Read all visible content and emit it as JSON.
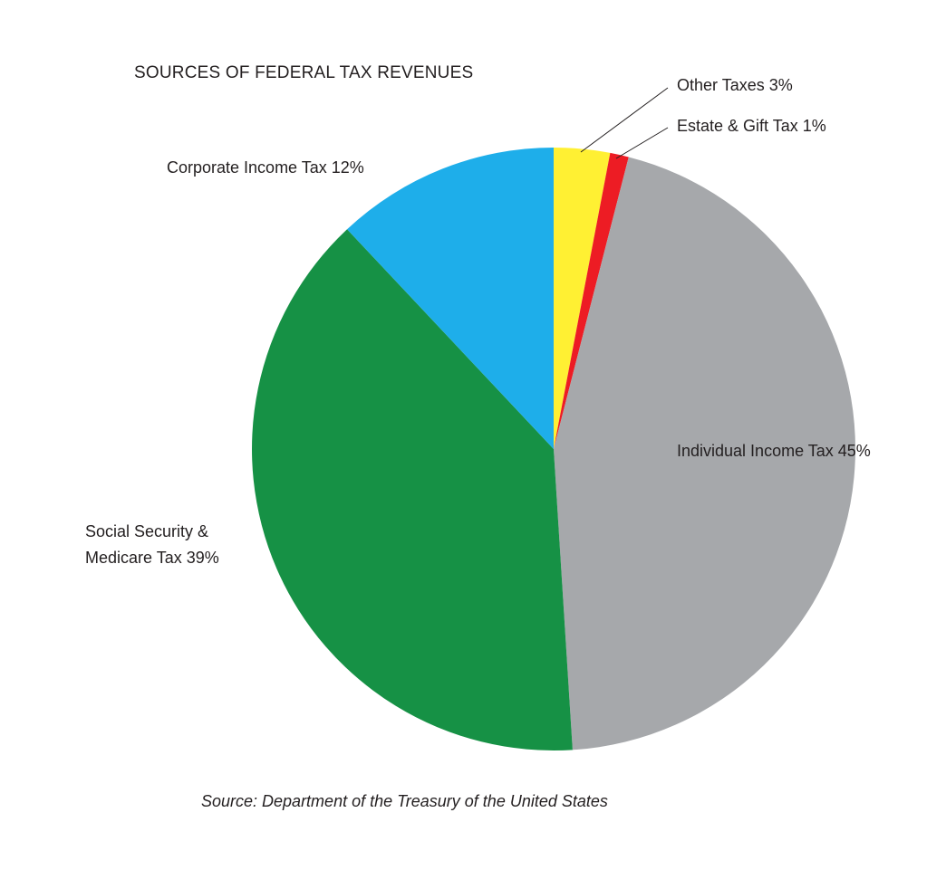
{
  "chart_data": {
    "type": "pie",
    "title": "SOURCES OF FEDERAL TAX REVENUES",
    "source": "Source: Department of the Treasury of the United States",
    "unit": "%",
    "start_angle_deg": 0,
    "direction": "clockwise",
    "slices": [
      {
        "label": "Other Taxes 3%",
        "value": 3,
        "color": "#fff033"
      },
      {
        "label": "Estate & Gift Tax 1%",
        "value": 1,
        "color": "#ed1c24"
      },
      {
        "label": "Individual Income Tax 45%",
        "value": 45,
        "color": "#a6a8ab"
      },
      {
        "label": "Social Security & Medicare Tax 39%",
        "label_lines": [
          "Social Security &",
          "Medicare Tax 39%"
        ],
        "value": 39,
        "color": "#169145"
      },
      {
        "label": "Corporate Income Tax 12%",
        "value": 12,
        "color": "#1eaeea"
      }
    ]
  }
}
